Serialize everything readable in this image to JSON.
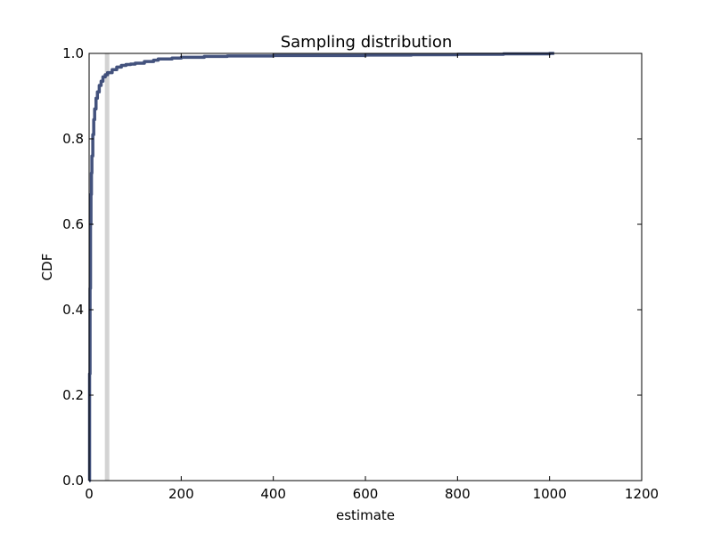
{
  "chart_data": {
    "type": "line",
    "title": "Sampling distribution",
    "xlabel": "estimate",
    "ylabel": "CDF",
    "xlim": [
      0,
      1200
    ],
    "ylim": [
      0.0,
      1.0
    ],
    "x_ticks": [
      "0",
      "200",
      "400",
      "600",
      "800",
      "1000",
      "1200"
    ],
    "y_ticks": [
      "0.0",
      "0.2",
      "0.4",
      "0.6",
      "0.8",
      "1.0"
    ],
    "grid": false,
    "legend": "none",
    "reference_line": {
      "x": 39,
      "color": "#d3d3d3"
    },
    "series": [
      {
        "color": "#2f3f6f",
        "x": [
          0,
          1,
          2,
          3,
          4,
          5,
          6,
          8,
          10,
          12,
          15,
          18,
          22,
          26,
          30,
          35,
          40,
          50,
          60,
          70,
          80,
          90,
          100,
          120,
          140,
          150,
          180,
          200,
          250,
          300,
          400,
          500,
          600,
          700,
          800,
          850,
          900,
          1000,
          1010
        ],
        "y": [
          0.0,
          0.25,
          0.45,
          0.6,
          0.67,
          0.72,
          0.76,
          0.81,
          0.845,
          0.87,
          0.895,
          0.91,
          0.925,
          0.935,
          0.945,
          0.95,
          0.955,
          0.962,
          0.968,
          0.972,
          0.974,
          0.975,
          0.977,
          0.981,
          0.984,
          0.987,
          0.989,
          0.991,
          0.993,
          0.994,
          0.995,
          0.995,
          0.996,
          0.997,
          0.998,
          0.998,
          0.999,
          1.0,
          1.0
        ]
      }
    ]
  }
}
